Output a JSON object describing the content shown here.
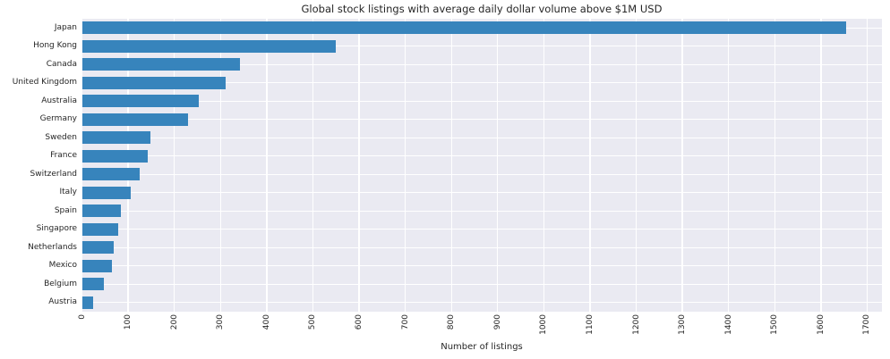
{
  "chart_data": {
    "type": "bar",
    "orientation": "horizontal",
    "title": "Global stock listings with average daily dollar volume above $1M USD",
    "xlabel": "Number of listings",
    "ylabel": "",
    "categories": [
      "Japan",
      "Hong Kong",
      "Canada",
      "United Kingdom",
      "Australia",
      "Germany",
      "Sweden",
      "France",
      "Switzerland",
      "Italy",
      "Spain",
      "Singapore",
      "Netherlands",
      "Mexico",
      "Belgium",
      "Austria"
    ],
    "values": [
      1655,
      550,
      342,
      311,
      253,
      230,
      148,
      143,
      125,
      106,
      85,
      78,
      68,
      64,
      47,
      24
    ],
    "xlim": [
      0,
      1732
    ],
    "xticks": [
      0,
      100,
      200,
      300,
      400,
      500,
      600,
      700,
      800,
      900,
      1000,
      1100,
      1200,
      1300,
      1400,
      1500,
      1600,
      1700
    ],
    "grid": true,
    "legend": "none",
    "colors": {
      "bar": "#3784bc",
      "plot_background": "#eaeaf2",
      "figure_background": "#ffffff",
      "gridline": "#ffffff",
      "text": "#262626"
    }
  }
}
